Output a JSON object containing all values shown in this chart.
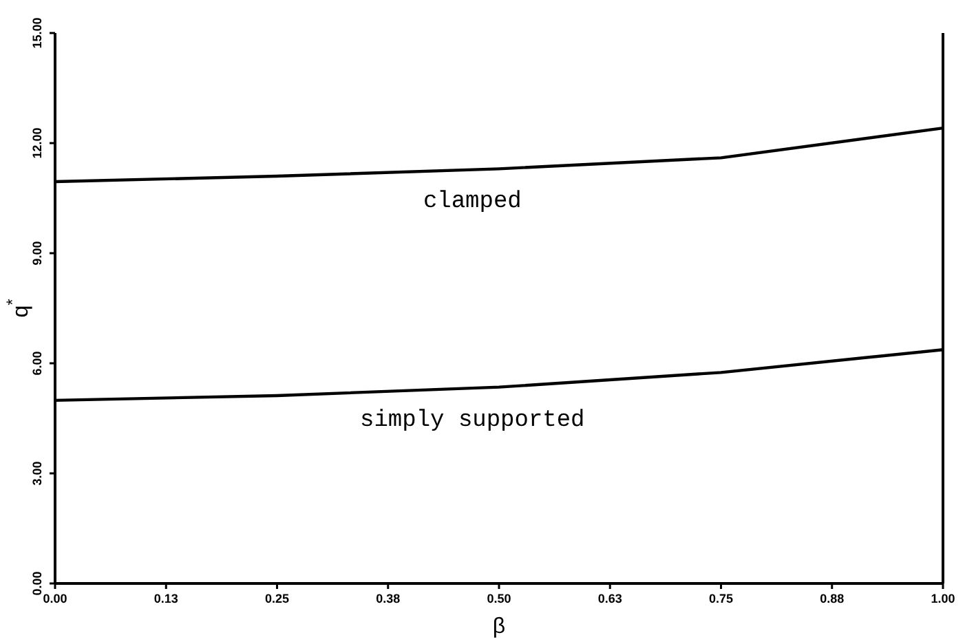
{
  "chart_data": {
    "type": "line",
    "xlabel": "β",
    "ylabel": "q$^{*}$",
    "xlim": [
      0,
      1
    ],
    "ylim": [
      0,
      15
    ],
    "xticks": [
      {
        "value": 0,
        "label": "0.00"
      },
      {
        "value": 0.125,
        "label": "0.13"
      },
      {
        "value": 0.25,
        "label": "0.25"
      },
      {
        "value": 0.375,
        "label": "0.38"
      },
      {
        "value": 0.5,
        "label": "0.50"
      },
      {
        "value": 0.625,
        "label": "0.63"
      },
      {
        "value": 0.75,
        "label": "0.75"
      },
      {
        "value": 0.875,
        "label": "0.88"
      },
      {
        "value": 1,
        "label": "1.00"
      }
    ],
    "yticks": [
      {
        "value": 0,
        "label": "0.00"
      },
      {
        "value": 3,
        "label": "3.00"
      },
      {
        "value": 6,
        "label": "6.00"
      },
      {
        "value": 9,
        "label": "9.00"
      },
      {
        "value": 12,
        "label": "12.00"
      },
      {
        "value": 15,
        "label": "15.00"
      }
    ],
    "x": [
      0,
      0.25,
      0.5,
      0.75,
      1
    ],
    "series": [
      {
        "color": "#000000",
        "values": [
          10.95,
          11.1,
          11.3,
          11.6,
          12.41
        ]
      },
      {
        "color": "#000000",
        "values": [
          4.99,
          5.12,
          5.35,
          5.75,
          6.37
        ]
      }
    ],
    "annotations": [
      "clamped",
      "simply supported"
    ],
    "grid": false,
    "marker": "none",
    "line_style": "solid"
  }
}
